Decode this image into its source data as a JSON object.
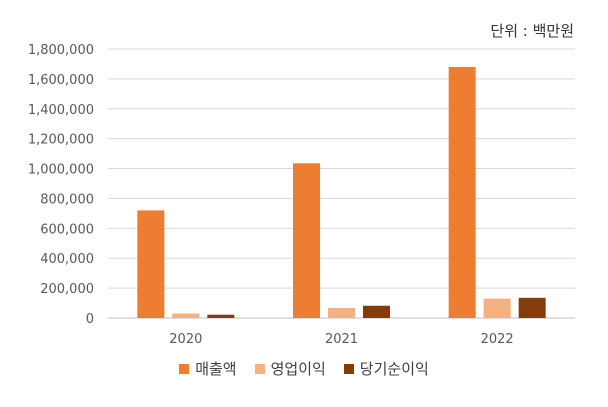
{
  "chart_data": {
    "type": "bar",
    "unit_label": "단위 : 백만원",
    "categories": [
      "2020",
      "2021",
      "2022"
    ],
    "series": [
      {
        "name": "매출액",
        "color": "#ED7D31",
        "values": [
          720000,
          1035000,
          1680000
        ]
      },
      {
        "name": "영업이익",
        "color": "#F4B183",
        "values": [
          30000,
          68000,
          130000
        ]
      },
      {
        "name": "당기순이익",
        "color": "#843C0C",
        "values": [
          22000,
          82000,
          135000
        ]
      }
    ],
    "y_ticks": [
      "0",
      "200,000",
      "400,000",
      "600,000",
      "800,000",
      "1,000,000",
      "1,200,000",
      "1,400,000",
      "1,600,000",
      "1,800,000"
    ],
    "ylim": [
      0,
      1800000
    ],
    "grid": true,
    "legend_position": "bottom"
  }
}
